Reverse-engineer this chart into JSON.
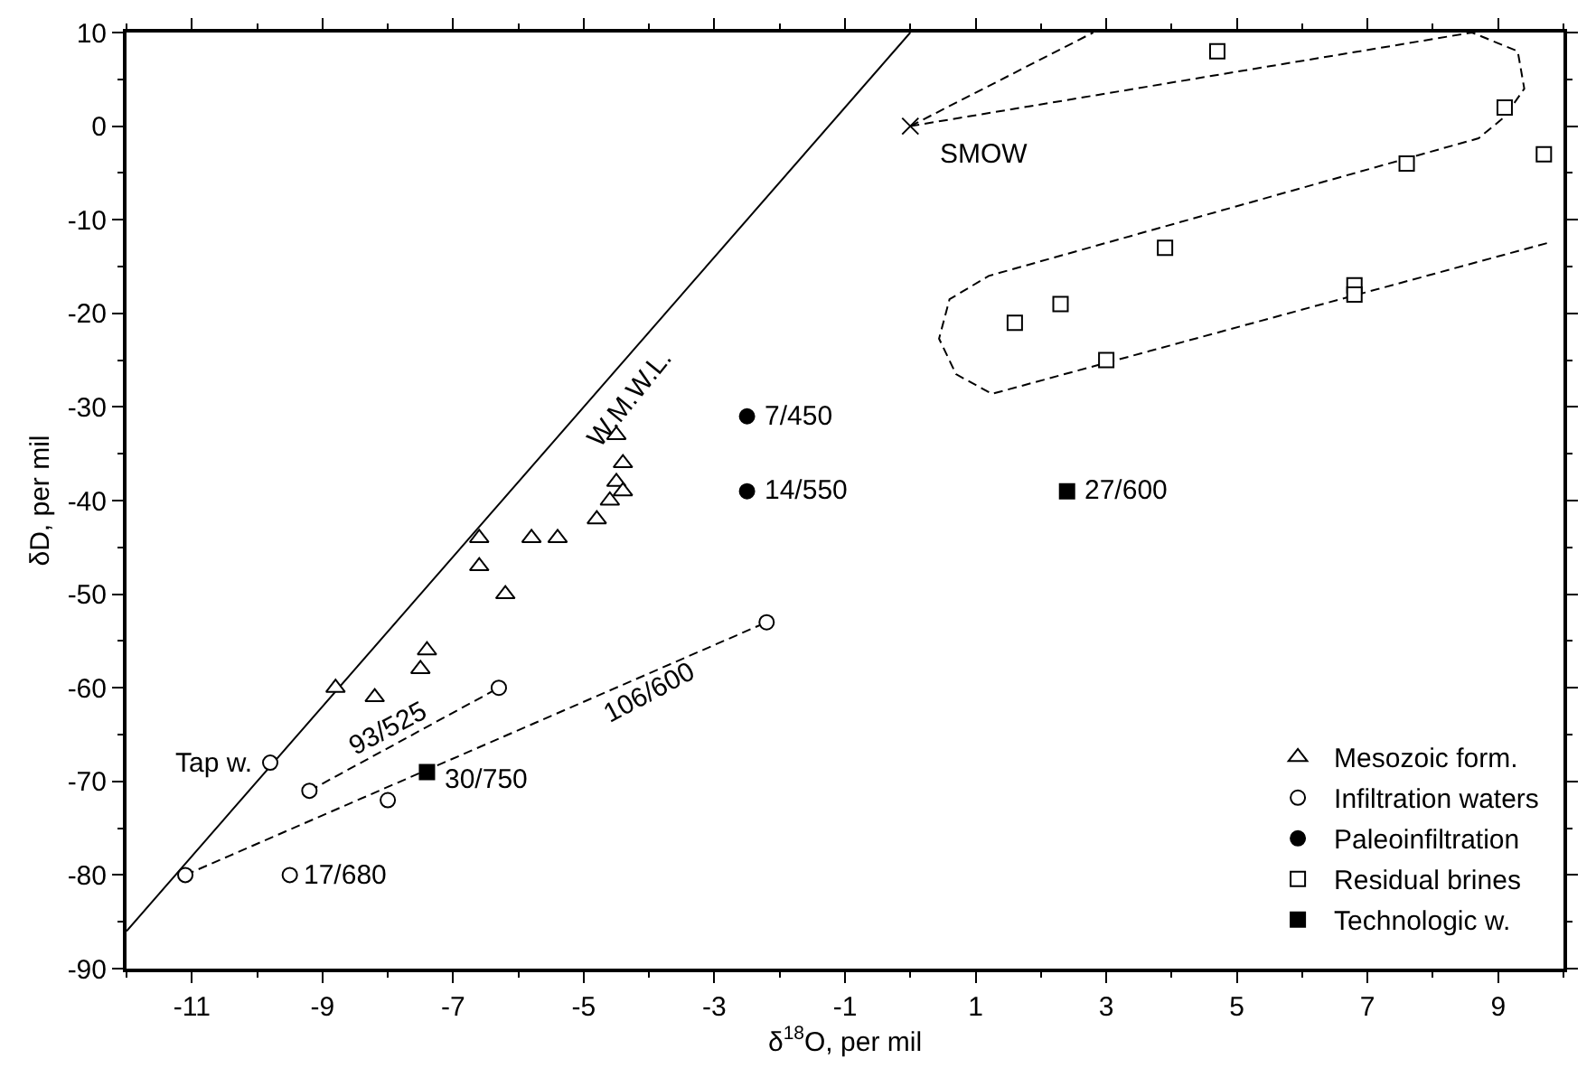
{
  "chart_data": {
    "type": "scatter",
    "xlabel": "δ$^{18}$O, per mil",
    "ylabel": "δD, per mil",
    "xlim": [
      -12,
      10
    ],
    "ylim": [
      -90,
      10
    ],
    "xticks": [
      -11,
      -9,
      -7,
      -5,
      -3,
      -1,
      1,
      3,
      5,
      7,
      9
    ],
    "yticks": [
      -90,
      -80,
      -70,
      -60,
      -50,
      -40,
      -30,
      -20,
      -10,
      0,
      10
    ],
    "legend": "bottom right",
    "series": [
      {
        "type": "line",
        "color": "#000000",
        "line_style": "solid",
        "marker": "none",
        "x": [
          -12,
          0
        ],
        "values": [
          -86,
          10
        ]
      },
      {
        "type": "line",
        "color": "#000000",
        "line_style": "dashed",
        "marker": "none",
        "x": [
          -11.1,
          -2.2
        ],
        "values": [
          -80,
          -53
        ]
      },
      {
        "type": "line",
        "color": "#000000",
        "line_style": "dashed",
        "marker": "none",
        "x": [
          -9.2,
          -6.3
        ],
        "values": [
          -71,
          -60
        ]
      },
      {
        "type": "line",
        "color": "#000000",
        "line_style": "dashed",
        "marker": "none",
        "x": [
          0,
          2.8
        ],
        "values": [
          0,
          10
        ]
      },
      {
        "type": "line",
        "color": "#000000",
        "line_style": "dashed",
        "marker": "none",
        "x": [
          0,
          8.6,
          9.3,
          9.4,
          9.1,
          8.7,
          1.2,
          0.6,
          0.44,
          0.7,
          1.25,
          9.8
        ],
        "values": [
          0,
          10,
          8,
          4,
          1,
          -1.3,
          -16,
          -18.5,
          -22.7,
          -26.5,
          -28.6,
          -12.4
        ]
      },
      {
        "color": "#000000",
        "marker": "cross",
        "x": [
          0
        ],
        "values": [
          0
        ]
      },
      {
        "name": "Mesozoic form.",
        "color": "#ffffff",
        "marker": "triangle",
        "x": [
          -8.8,
          -8.2,
          -7.4,
          -7.5,
          -6.6,
          -6.6,
          -6.2,
          -5.8,
          -5.4,
          -4.8,
          -4.6,
          -4.5,
          -4.4,
          -4.4,
          -4.5
        ],
        "values": [
          -60,
          -61,
          -56,
          -58,
          -44,
          -47,
          -50,
          -44,
          -44,
          -42,
          -40,
          -38,
          -39,
          -36,
          -33
        ]
      },
      {
        "name": "Infiltration waters",
        "color": "#ffffff",
        "marker": "circle",
        "x": [
          -11.1,
          -9.8,
          -9.2,
          -8.0,
          -6.3,
          -2.2,
          -9.5
        ],
        "values": [
          -80,
          -68,
          -71,
          -72,
          -60,
          -53,
          -80
        ]
      },
      {
        "name": "Paleoinfiltration",
        "color": "#000000",
        "marker": "circle",
        "x": [
          -2.5,
          -2.5
        ],
        "values": [
          -31,
          -39
        ]
      },
      {
        "name": "Residual brines",
        "color": "#ffffff",
        "marker": "square",
        "x": [
          1.6,
          2.3,
          3.0,
          3.9,
          4.7,
          6.8,
          6.8,
          7.6,
          9.1,
          9.7
        ],
        "values": [
          -21,
          -19,
          -25,
          -13,
          8,
          -17,
          -18,
          -4,
          2,
          -3
        ]
      },
      {
        "name": "Technologic w.",
        "color": "#000000",
        "marker": "square",
        "x": [
          -7.4,
          2.4
        ],
        "values": [
          -69,
          -39
        ]
      }
    ],
    "annotations": [
      "W.M.W.L.",
      {
        "text": "SMOW",
        "x": 0,
        "y": 0
      },
      {
        "text": "Tap w.",
        "x": -9.8,
        "y": -68
      },
      "93/525",
      "106/600",
      {
        "text": "7/450",
        "x": -2.5,
        "y": -31
      },
      {
        "text": "14/550",
        "x": -2.5,
        "y": -39
      },
      {
        "text": "27/600",
        "x": 2.4,
        "y": -39
      },
      {
        "text": "30/750",
        "x": -7.4,
        "y": -69
      },
      {
        "text": "17/680",
        "x": -9.5,
        "y": -80
      }
    ]
  }
}
